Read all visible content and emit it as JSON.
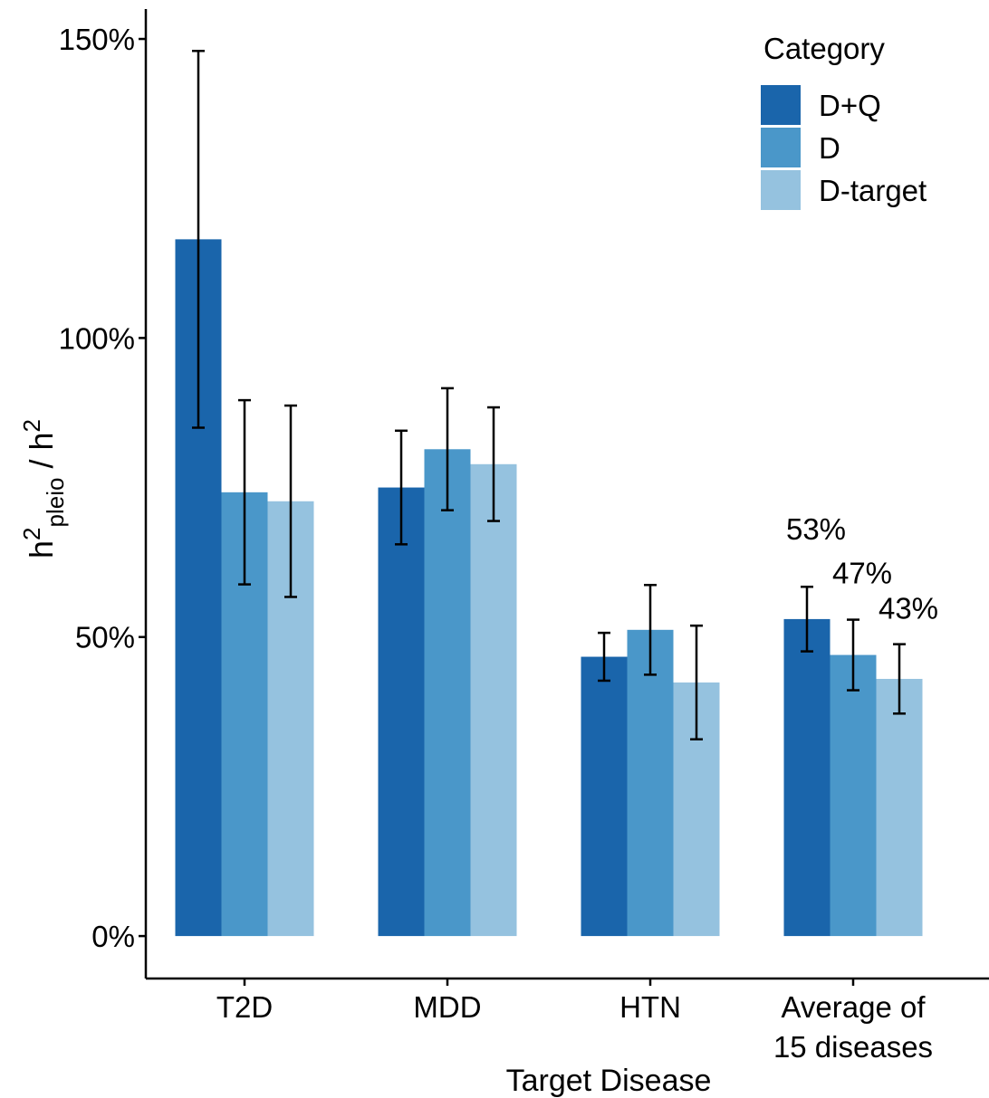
{
  "chart_data": {
    "type": "bar",
    "x_label": "Target Disease",
    "y_label_parts": [
      "h",
      "2",
      "pleio",
      " / h",
      "2"
    ],
    "legend_title": "Category",
    "legend_position": "top-right",
    "categories": [
      "T2D",
      "MDD",
      "HTN",
      "Average of\n15 diseases"
    ],
    "series": [
      {
        "name": "D+Q",
        "color": "#1a65ab",
        "values": [
          116.5,
          75,
          46.7,
          53
        ],
        "errors": [
          31.5,
          9.5,
          4,
          5.4
        ],
        "value_labels": [
          null,
          null,
          null,
          "53%"
        ]
      },
      {
        "name": "D",
        "color": "#4a97c9",
        "values": [
          74.2,
          81.4,
          51.2,
          47
        ],
        "errors": [
          15.4,
          10.2,
          7.5,
          5.9
        ],
        "value_labels": [
          null,
          null,
          null,
          "47%"
        ]
      },
      {
        "name": "D-target",
        "color": "#95c2df",
        "values": [
          72.7,
          78.9,
          42.4,
          43
        ],
        "errors": [
          16,
          9.5,
          9.5,
          5.8
        ],
        "value_labels": [
          null,
          null,
          null,
          "43%"
        ]
      }
    ],
    "ylim": [
      -7.1,
      155
    ],
    "yticks": [
      {
        "value": 0,
        "label": "0%"
      },
      {
        "value": 50,
        "label": "50%"
      },
      {
        "value": 100,
        "label": "100%"
      },
      {
        "value": 150,
        "label": "150%"
      }
    ],
    "grid": false
  }
}
